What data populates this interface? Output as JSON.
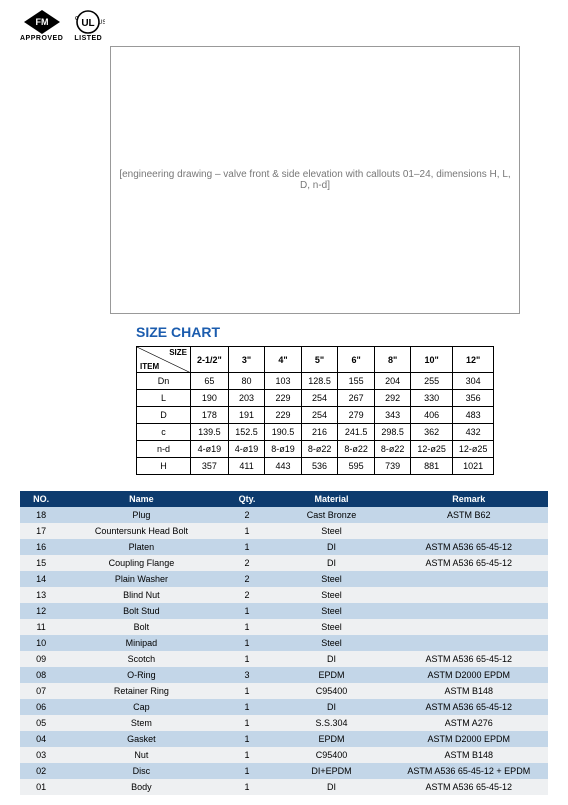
{
  "logos": {
    "fm_sub": "APPROVED",
    "ul_sub": "LISTED",
    "ul_c": "c",
    "ul_us": "US",
    "ul_text": "UL",
    "fm_text": "FM"
  },
  "diagram": {
    "placeholder": "[engineering drawing – valve front & side elevation with callouts 01–24, dimensions H, L, D, n-d]"
  },
  "size_chart": {
    "title": "SIZE CHART",
    "header_diag": {
      "size_label": "SIZE",
      "item_label": "ITEM"
    },
    "columns": [
      "2-1/2\"",
      "3\"",
      "4\"",
      "5\"",
      "6\"",
      "8\"",
      "10\"",
      "12\""
    ],
    "rows": [
      {
        "label": "Dn",
        "v": [
          "65",
          "80",
          "103",
          "128.5",
          "155",
          "204",
          "255",
          "304"
        ]
      },
      {
        "label": "L",
        "v": [
          "190",
          "203",
          "229",
          "254",
          "267",
          "292",
          "330",
          "356"
        ]
      },
      {
        "label": "D",
        "v": [
          "178",
          "191",
          "229",
          "254",
          "279",
          "343",
          "406",
          "483"
        ]
      },
      {
        "label": "c",
        "v": [
          "139.5",
          "152.5",
          "190.5",
          "216",
          "241.5",
          "298.5",
          "362",
          "432"
        ]
      },
      {
        "label": "n-d",
        "v": [
          "4-ø19",
          "4-ø19",
          "8-ø19",
          "8-ø22",
          "8-ø22",
          "8-ø22",
          "12-ø25",
          "12-ø25"
        ]
      },
      {
        "label": "H",
        "v": [
          "357",
          "411",
          "443",
          "536",
          "595",
          "739",
          "881",
          "1021"
        ]
      }
    ]
  },
  "bom": {
    "headers": {
      "no": "NO.",
      "name": "Name",
      "qty": "Qty.",
      "material": "Material",
      "remark": "Remark"
    },
    "rows": [
      {
        "no": "18",
        "name": "Plug",
        "qty": "2",
        "mat": "Cast Bronze",
        "rem": "ASTM  B62"
      },
      {
        "no": "17",
        "name": "Countersunk Head Bolt",
        "qty": "1",
        "mat": "Steel",
        "rem": ""
      },
      {
        "no": "16",
        "name": "Platen",
        "qty": "1",
        "mat": "DI",
        "rem": "ASTM A536 65-45-12"
      },
      {
        "no": "15",
        "name": "Coupling Flange",
        "qty": "2",
        "mat": "DI",
        "rem": "ASTM A536 65-45-12"
      },
      {
        "no": "14",
        "name": "Plain Washer",
        "qty": "2",
        "mat": "Steel",
        "rem": ""
      },
      {
        "no": "13",
        "name": "Blind Nut",
        "qty": "2",
        "mat": "Steel",
        "rem": ""
      },
      {
        "no": "12",
        "name": "Bolt Stud",
        "qty": "1",
        "mat": "Steel",
        "rem": ""
      },
      {
        "no": "11",
        "name": "Bolt",
        "qty": "1",
        "mat": "Steel",
        "rem": ""
      },
      {
        "no": "10",
        "name": "Minipad",
        "qty": "1",
        "mat": "Steel",
        "rem": ""
      },
      {
        "no": "09",
        "name": "Scotch",
        "qty": "1",
        "mat": "DI",
        "rem": "ASTM A536 65-45-12"
      },
      {
        "no": "08",
        "name": "O-Ring",
        "qty": "3",
        "mat": "EPDM",
        "rem": "ASTM D2000 EPDM"
      },
      {
        "no": "07",
        "name": "Retainer Ring",
        "qty": "1",
        "mat": "C95400",
        "rem": "ASTM B148"
      },
      {
        "no": "06",
        "name": "Cap",
        "qty": "1",
        "mat": "DI",
        "rem": "ASTM A536 65-45-12"
      },
      {
        "no": "05",
        "name": "Stem",
        "qty": "1",
        "mat": "S.S.304",
        "rem": "ASTM A276"
      },
      {
        "no": "04",
        "name": "Gasket",
        "qty": "1",
        "mat": "EPDM",
        "rem": "ASTM D2000 EPDM"
      },
      {
        "no": "03",
        "name": "Nut",
        "qty": "1",
        "mat": "C95400",
        "rem": "ASTM B148"
      },
      {
        "no": "02",
        "name": "Disc",
        "qty": "1",
        "mat": "DI+EPDM",
        "rem": "ASTM A536 65-45-12  +  EPDM"
      },
      {
        "no": "01",
        "name": "Body",
        "qty": "1",
        "mat": "DI",
        "rem": "ASTM A536 65-45-12"
      }
    ]
  },
  "colors": {
    "title": "#1b5cae",
    "header_bg": "#0d3b6e",
    "stripe_a": "#c3d6e8",
    "stripe_b": "#eef0f2"
  }
}
